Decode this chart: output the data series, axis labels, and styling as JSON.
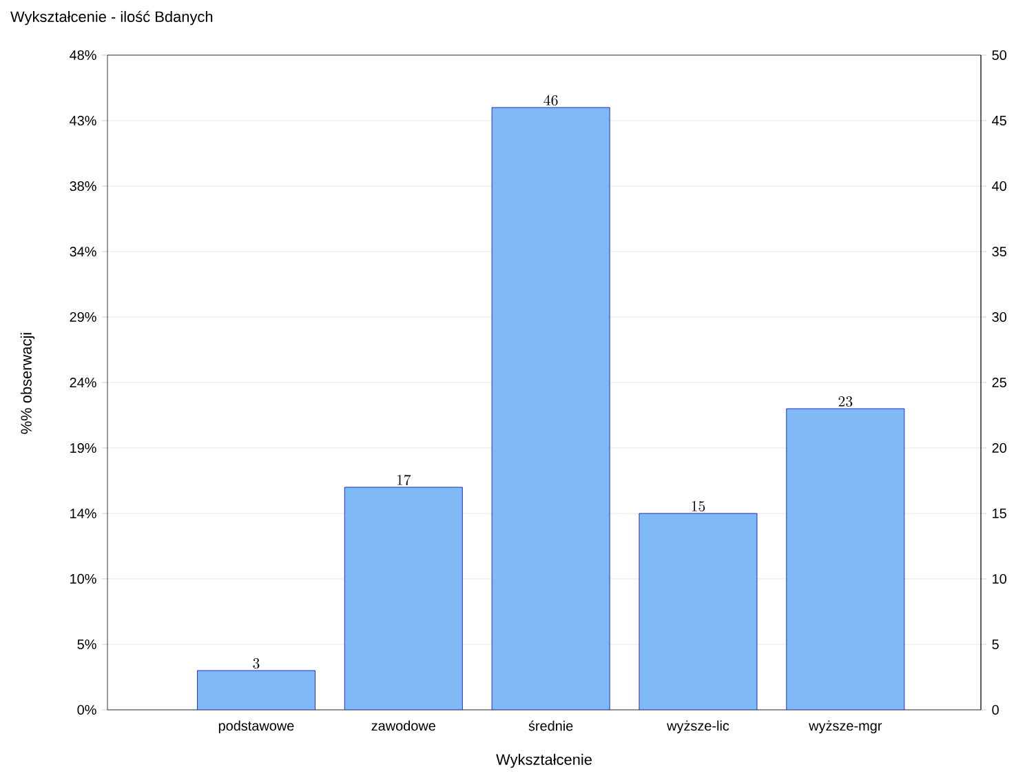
{
  "chart_data": {
    "type": "bar",
    "title": "Wykształcenie - ilość Bdanych",
    "xlabel": "Wykształcenie",
    "ylabel": "%% obserwacji",
    "categories": [
      "podstawowe",
      "zawodowe",
      "średnie",
      "wyższe-lic",
      "wyższe-mgr"
    ],
    "series": [
      {
        "color": "#7fbaf6",
        "values": [
          3,
          17,
          46,
          15,
          23
        ],
        "axis": "y2"
      }
    ],
    "ylim": [
      0,
      48.08
    ],
    "yticks": [
      {
        "value": 0,
        "label": "0%"
      },
      {
        "value": 4.81,
        "label": "5%"
      },
      {
        "value": 9.62,
        "label": "10%"
      },
      {
        "value": 14.42,
        "label": "14%"
      },
      {
        "value": 19.23,
        "label": "19%"
      },
      {
        "value": 24.04,
        "label": "24%"
      },
      {
        "value": 28.85,
        "label": "29%"
      },
      {
        "value": 33.65,
        "label": "34%"
      },
      {
        "value": 38.46,
        "label": "38%"
      },
      {
        "value": 43.27,
        "label": "43%"
      },
      {
        "value": 48.08,
        "label": "48%"
      }
    ],
    "y2lim": [
      0,
      50
    ],
    "y2ticks": [
      0,
      5,
      10,
      15,
      20,
      25,
      30,
      35,
      40,
      45,
      50
    ],
    "grid": "y",
    "data_labels": true
  }
}
